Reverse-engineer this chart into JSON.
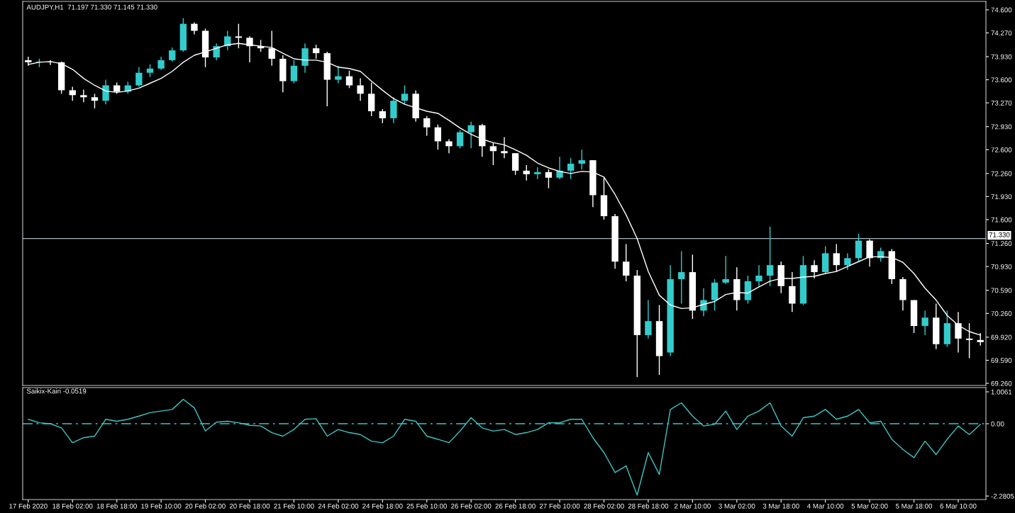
{
  "chart_data": [
    {
      "type": "candlestick",
      "title": "AUDJPY,H1  71.197 71.330 71.145 71.330",
      "ohlc": [
        [
          73.88,
          73.93,
          73.8,
          73.85
        ],
        [
          73.85,
          73.9,
          73.78,
          73.86
        ],
        [
          73.86,
          73.88,
          73.81,
          73.85
        ],
        [
          73.85,
          73.86,
          73.4,
          73.45
        ],
        [
          73.45,
          73.5,
          73.3,
          73.38
        ],
        [
          73.38,
          73.46,
          73.28,
          73.35
        ],
        [
          73.35,
          73.4,
          73.19,
          73.3
        ],
        [
          73.3,
          73.6,
          73.25,
          73.52
        ],
        [
          73.52,
          73.56,
          73.4,
          73.43
        ],
        [
          73.43,
          73.57,
          73.4,
          73.52
        ],
        [
          73.52,
          73.78,
          73.5,
          73.7
        ],
        [
          73.7,
          73.82,
          73.64,
          73.76
        ],
        [
          73.76,
          73.93,
          73.74,
          73.88
        ],
        [
          73.88,
          74.06,
          73.86,
          74.02
        ],
        [
          74.02,
          74.48,
          74.0,
          74.4
        ],
        [
          74.4,
          74.42,
          74.25,
          74.3
        ],
        [
          74.3,
          74.33,
          73.78,
          73.92
        ],
        [
          73.92,
          74.12,
          73.88,
          74.08
        ],
        [
          74.08,
          74.3,
          74.02,
          74.22
        ],
        [
          74.22,
          74.4,
          74.05,
          74.2
        ],
        [
          74.2,
          74.22,
          73.85,
          74.08
        ],
        [
          74.08,
          74.17,
          74.0,
          74.05
        ],
        [
          74.05,
          74.3,
          73.8,
          73.9
        ],
        [
          73.9,
          73.95,
          73.42,
          73.58
        ],
        [
          73.58,
          73.88,
          73.55,
          73.8
        ],
        [
          73.8,
          74.12,
          73.7,
          74.05
        ],
        [
          74.05,
          74.1,
          73.9,
          73.98
        ],
        [
          73.98,
          74.0,
          73.22,
          73.6
        ],
        [
          73.6,
          73.8,
          73.55,
          73.65
        ],
        [
          73.65,
          73.73,
          73.48,
          73.52
        ],
        [
          73.52,
          73.62,
          73.3,
          73.4
        ],
        [
          73.4,
          73.56,
          73.08,
          73.15
        ],
        [
          73.15,
          73.18,
          72.98,
          73.05
        ],
        [
          73.05,
          73.35,
          72.98,
          73.3
        ],
        [
          73.3,
          73.52,
          73.25,
          73.4
        ],
        [
          73.4,
          73.45,
          73.0,
          73.05
        ],
        [
          73.05,
          73.08,
          72.8,
          72.92
        ],
        [
          72.92,
          72.96,
          72.6,
          72.72
        ],
        [
          72.72,
          72.75,
          72.55,
          72.65
        ],
        [
          72.65,
          72.88,
          72.62,
          72.85
        ],
        [
          72.85,
          73.0,
          72.62,
          72.95
        ],
        [
          72.95,
          72.97,
          72.5,
          72.65
        ],
        [
          72.65,
          72.7,
          72.38,
          72.58
        ],
        [
          72.58,
          72.78,
          72.48,
          72.55
        ],
        [
          72.55,
          72.55,
          72.24,
          72.3
        ],
        [
          72.3,
          72.38,
          72.16,
          72.25
        ],
        [
          72.25,
          72.35,
          72.18,
          72.28
        ],
        [
          72.28,
          72.32,
          72.05,
          72.2
        ],
        [
          72.2,
          72.5,
          72.18,
          72.3
        ],
        [
          72.3,
          72.48,
          72.18,
          72.4
        ],
        [
          72.4,
          72.6,
          72.32,
          72.45
        ],
        [
          72.45,
          72.45,
          71.78,
          71.95
        ],
        [
          71.95,
          72.2,
          71.6,
          71.65
        ],
        [
          71.65,
          71.68,
          70.9,
          71.0
        ],
        [
          71.0,
          71.25,
          70.72,
          70.8
        ],
        [
          70.8,
          70.88,
          69.35,
          69.95
        ],
        [
          69.95,
          70.45,
          69.9,
          70.15
        ],
        [
          70.15,
          70.38,
          69.38,
          69.65
        ],
        [
          69.7,
          70.95,
          69.65,
          70.75
        ],
        [
          70.75,
          71.15,
          70.4,
          70.85
        ],
        [
          70.85,
          71.1,
          70.18,
          70.3
        ],
        [
          70.3,
          70.62,
          70.22,
          70.45
        ],
        [
          70.45,
          70.75,
          70.3,
          70.7
        ],
        [
          70.7,
          71.08,
          70.68,
          70.75
        ],
        [
          70.75,
          70.92,
          70.3,
          70.45
        ],
        [
          70.45,
          70.8,
          70.4,
          70.72
        ],
        [
          70.72,
          70.95,
          70.65,
          70.8
        ],
        [
          70.8,
          71.5,
          70.65,
          70.95
        ],
        [
          70.95,
          71.0,
          70.55,
          70.65
        ],
        [
          70.65,
          70.85,
          70.28,
          70.4
        ],
        [
          70.4,
          71.08,
          70.38,
          70.95
        ],
        [
          70.95,
          71.02,
          70.76,
          70.85
        ],
        [
          70.85,
          71.22,
          70.82,
          71.12
        ],
        [
          71.12,
          71.25,
          70.85,
          70.95
        ],
        [
          70.95,
          71.12,
          70.88,
          71.05
        ],
        [
          71.05,
          71.4,
          71.0,
          71.3
        ],
        [
          71.3,
          71.32,
          70.93,
          71.05
        ],
        [
          71.05,
          71.2,
          71.0,
          71.15
        ],
        [
          71.15,
          71.18,
          70.68,
          70.75
        ],
        [
          70.75,
          70.78,
          70.3,
          70.45
        ],
        [
          70.45,
          70.45,
          69.98,
          70.08
        ],
        [
          70.08,
          70.3,
          69.95,
          70.2
        ],
        [
          70.2,
          70.4,
          69.75,
          69.82
        ],
        [
          69.82,
          70.3,
          69.78,
          70.12
        ],
        [
          70.12,
          70.28,
          69.7,
          69.9
        ],
        [
          69.9,
          70.12,
          69.62,
          69.88
        ],
        [
          69.88,
          69.98,
          69.8,
          69.85
        ]
      ],
      "colors": [
        "#ffffff",
        "#33cccc",
        "#ffffff",
        "#ffffff",
        "#ffffff",
        "#ffffff",
        "#ffffff",
        "#33cccc",
        "#ffffff",
        "#33cccc",
        "#33cccc",
        "#33cccc",
        "#33cccc",
        "#33cccc",
        "#33cccc",
        "#ffffff",
        "#ffffff",
        "#33cccc",
        "#33cccc",
        "#ffffff",
        "#ffffff",
        "#ffffff",
        "#ffffff",
        "#ffffff",
        "#33cccc",
        "#33cccc",
        "#ffffff",
        "#ffffff",
        "#33cccc",
        "#ffffff",
        "#ffffff",
        "#ffffff",
        "#ffffff",
        "#33cccc",
        "#33cccc",
        "#ffffff",
        "#ffffff",
        "#ffffff",
        "#ffffff",
        "#33cccc",
        "#33cccc",
        "#ffffff",
        "#ffffff",
        "#ffffff",
        "#ffffff",
        "#ffffff",
        "#33cccc",
        "#ffffff",
        "#33cccc",
        "#33cccc",
        "#33cccc",
        "#ffffff",
        "#ffffff",
        "#ffffff",
        "#ffffff",
        "#ffffff",
        "#33cccc",
        "#ffffff",
        "#33cccc",
        "#33cccc",
        "#ffffff",
        "#33cccc",
        "#33cccc",
        "#33cccc",
        "#ffffff",
        "#33cccc",
        "#33cccc",
        "#33cccc",
        "#ffffff",
        "#ffffff",
        "#33cccc",
        "#ffffff",
        "#33cccc",
        "#ffffff",
        "#33cccc",
        "#33cccc",
        "#ffffff",
        "#33cccc",
        "#ffffff",
        "#ffffff",
        "#ffffff",
        "#33cccc",
        "#ffffff",
        "#33cccc",
        "#ffffff",
        "#ffffff",
        "#ffffff"
      ],
      "series": [
        {
          "type": "line",
          "color": "#ffffff",
          "values": [
            73.82,
            73.85,
            73.86,
            73.83,
            73.75,
            73.62,
            73.52,
            73.44,
            73.42,
            73.44,
            73.48,
            73.55,
            73.62,
            73.72,
            73.85,
            73.95,
            74.0,
            74.05,
            74.1,
            74.12,
            74.1,
            74.08,
            74.06,
            73.98,
            73.9,
            73.88,
            73.88,
            73.85,
            73.78,
            73.76,
            73.72,
            73.58,
            73.45,
            73.33,
            73.25,
            73.2,
            73.15,
            73.12,
            73.02,
            72.91,
            72.82,
            72.75,
            72.7,
            72.67,
            72.6,
            72.52,
            72.41,
            72.34,
            72.29,
            72.26,
            72.29,
            72.28,
            72.21,
            71.96,
            71.67,
            71.33,
            70.86,
            70.52,
            70.38,
            70.33,
            70.34,
            70.39,
            70.43,
            70.53,
            70.56,
            70.55,
            70.64,
            70.72,
            70.76,
            70.76,
            70.78,
            70.79,
            70.83,
            70.86,
            70.93,
            71.0,
            71.07,
            71.07,
            71.06,
            70.99,
            70.83,
            70.62,
            70.45,
            70.23,
            70.09,
            70.0,
            69.95
          ]
        }
      ],
      "ylim": [
        69.23,
        74.72
      ],
      "yticks": [
        {
          "value": 74.6,
          "label": "74.600"
        },
        {
          "value": 74.27,
          "label": "74.270"
        },
        {
          "value": 73.93,
          "label": "73.930"
        },
        {
          "value": 73.6,
          "label": "73.600"
        },
        {
          "value": 73.27,
          "label": "73.270"
        },
        {
          "value": 72.93,
          "label": "72.930"
        },
        {
          "value": 72.6,
          "label": "72.600"
        },
        {
          "value": 72.26,
          "label": "72.260"
        },
        {
          "value": 71.93,
          "label": "71.930"
        },
        {
          "value": 71.6,
          "label": "71.600"
        },
        {
          "value": 71.26,
          "label": "71.260"
        },
        {
          "value": 70.93,
          "label": "70.930"
        },
        {
          "value": 70.59,
          "label": "70.590"
        },
        {
          "value": 70.26,
          "label": "70.260"
        },
        {
          "value": 69.92,
          "label": "69.920"
        },
        {
          "value": 69.59,
          "label": "69.590"
        },
        {
          "value": 69.26,
          "label": "69.260"
        }
      ],
      "ref_lines": [
        {
          "axis": "y",
          "value": 71.33,
          "label": "71.330",
          "color": "#a8b4bc",
          "line_style": "solid"
        }
      ],
      "tick_labels": "y"
    },
    {
      "type": "line",
      "title": "Saikix-Kairi -0.0519",
      "categories": [
        "17 Feb 2020",
        null,
        null,
        null,
        "18 Feb 02:00",
        null,
        null,
        null,
        "18 Feb 18:00",
        null,
        null,
        null,
        "19 Feb 10:00",
        null,
        null,
        null,
        "20 Feb 02:00",
        null,
        null,
        null,
        "20 Feb 18:00",
        null,
        null,
        null,
        "21 Feb 10:00",
        null,
        null,
        null,
        "24 Feb 02:00",
        null,
        null,
        null,
        "24 Feb 18:00",
        null,
        null,
        null,
        "25 Feb 10:00",
        null,
        null,
        null,
        "26 Feb 02:00",
        null,
        null,
        null,
        "26 Feb 18:00",
        null,
        null,
        null,
        "27 Feb 10:00",
        null,
        null,
        null,
        "28 Feb 02:00",
        null,
        null,
        null,
        "28 Feb 18:00",
        null,
        null,
        null,
        "2 Mar 10:00",
        null,
        null,
        null,
        "3 Mar 02:00",
        null,
        null,
        null,
        "3 Mar 18:00",
        null,
        null,
        null,
        "4 Mar 10:00",
        null,
        null,
        null,
        "5 Mar 02:00",
        null,
        null,
        null,
        "5 Mar 18:00",
        null,
        null,
        null,
        "6 Mar 10:00",
        null,
        null
      ],
      "series": [
        {
          "color": "#40c4c4",
          "values": [
            0.14,
            0.03,
            0,
            -0.13,
            -0.6,
            -0.44,
            -0.39,
            0.14,
            0.08,
            0.14,
            0.24,
            0.35,
            0.4,
            0.45,
            0.77,
            0.5,
            -0.23,
            0.05,
            0.08,
            0.03,
            -0.05,
            -0.07,
            -0.28,
            -0.39,
            -0.18,
            0.14,
            0.16,
            -0.39,
            -0.18,
            -0.28,
            -0.34,
            -0.55,
            -0.6,
            -0.39,
            0.14,
            0.08,
            -0.39,
            -0.49,
            -0.6,
            -0.23,
            0.19,
            -0.13,
            -0.23,
            -0.18,
            -0.34,
            -0.28,
            -0.18,
            0.03,
            0.03,
            0.14,
            0.14,
            -0.44,
            -0.91,
            -1.54,
            -1.33,
            -2.25,
            -0.91,
            -1.6,
            0.45,
            0.66,
            0.24,
            -0.07,
            -0.02,
            0.4,
            -0.18,
            0.24,
            0.4,
            0.66,
            -0.07,
            -0.39,
            0.19,
            0.24,
            0.45,
            0.14,
            0.24,
            0.45,
            0.03,
            0.08,
            -0.49,
            -0.81,
            -1.07,
            -0.55,
            -0.97,
            -0.49,
            -0.07,
            -0.34,
            -0.02
          ]
        }
      ],
      "ylim": [
        -2.39,
        1.14
      ],
      "yticks": [
        1.0061,
        {
          "value": 0,
          "label": "0.00"
        },
        -2.2805
      ],
      "ref_lines": [
        {
          "axis": "y",
          "value": 0,
          "color": "#40c4c4",
          "line_style": "dashed"
        }
      ]
    }
  ]
}
